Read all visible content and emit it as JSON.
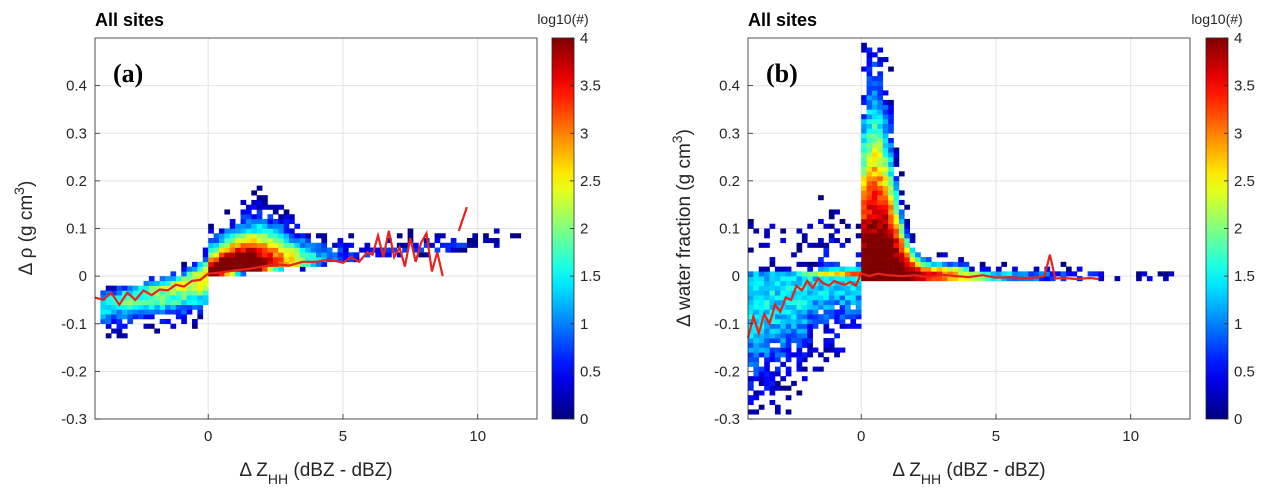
{
  "chart_data": [
    {
      "type": "heatmap",
      "panel_label": "(a)",
      "title": "All sites",
      "xlabel": "Δ Z",
      "xlabel_sub": "HH",
      "xlabel_unit": " (dBZ - dBZ)",
      "ylabel": "Δ ρ (g cm",
      "ylabel_sup": "3",
      "ylabel_end": ")",
      "xlim": [
        -4.2,
        12.2
      ],
      "ylim": [
        -0.3,
        0.5
      ],
      "xticks": [
        "0",
        "5",
        "10"
      ],
      "xtick_values": [
        0,
        5,
        10
      ],
      "yticks": [
        "-0.3",
        "-0.2",
        "-0.1",
        "0",
        "0.1",
        "0.2",
        "0.3",
        "0.4"
      ],
      "ytick_values": [
        -0.3,
        -0.2,
        -0.1,
        0,
        0.1,
        0.2,
        0.3,
        0.4
      ],
      "grid": true,
      "colorbar": {
        "label": "log10(#)",
        "ticks": [
          "0",
          "0.5",
          "1",
          "1.5",
          "2",
          "2.5",
          "3",
          "3.5",
          "4"
        ],
        "range": [
          0,
          4
        ],
        "colormap": "jet"
      },
      "median_line": {
        "color": "#e8231d",
        "x": [
          -4.2,
          -3.9,
          -3.6,
          -3.3,
          -3.0,
          -2.7,
          -2.4,
          -2.1,
          -1.8,
          -1.5,
          -1.2,
          -0.9,
          -0.6,
          -0.3,
          0,
          0.5,
          1,
          1.5,
          2,
          2.5,
          3,
          3.5,
          4,
          4.5,
          5,
          5.3,
          5.6,
          5.9,
          6.1,
          6.3,
          6.5,
          6.7,
          6.9,
          7.1,
          7.3,
          7.5,
          7.7,
          7.9,
          8.1,
          8.3,
          8.5,
          8.7
        ],
        "y": [
          -0.045,
          -0.05,
          -0.035,
          -0.06,
          -0.035,
          -0.05,
          -0.03,
          -0.04,
          -0.028,
          -0.03,
          -0.018,
          -0.022,
          -0.01,
          -0.008,
          0.005,
          0.008,
          0.012,
          0.015,
          0.02,
          0.025,
          0.022,
          0.03,
          0.03,
          0.035,
          0.028,
          0.04,
          0.03,
          0.05,
          0.045,
          0.085,
          0.04,
          0.095,
          0.04,
          0.06,
          0.02,
          0.08,
          0.03,
          0.07,
          0.09,
          0.01,
          0.05,
          0.0
        ],
        "extra_segment": {
          "x": [
            9.3,
            9.6
          ],
          "y": [
            0.095,
            0.145
          ]
        }
      }
    },
    {
      "type": "heatmap",
      "panel_label": "(b)",
      "title": "All sites",
      "xlabel": "Δ Z",
      "xlabel_sub": "HH",
      "xlabel_unit": " (dBZ - dBZ)",
      "ylabel": "Δ water fraction (g cm",
      "ylabel_sup": "3",
      "ylabel_end": ")",
      "xlim": [
        -4.2,
        12.2
      ],
      "ylim": [
        -0.3,
        0.5
      ],
      "xticks": [
        "0",
        "5",
        "10"
      ],
      "xtick_values": [
        0,
        5,
        10
      ],
      "yticks": [
        "-0.3",
        "-0.2",
        "-0.1",
        "0",
        "0.1",
        "0.2",
        "0.3",
        "0.4"
      ],
      "ytick_values": [
        -0.3,
        -0.2,
        -0.1,
        0,
        0.1,
        0.2,
        0.3,
        0.4
      ],
      "grid": true,
      "colorbar": {
        "label": "log10(#)",
        "ticks": [
          "0",
          "0.5",
          "1",
          "1.5",
          "2",
          "2.5",
          "3",
          "3.5",
          "4"
        ],
        "range": [
          0,
          4
        ],
        "colormap": "jet"
      },
      "median_line": {
        "color": "#e8231d",
        "x": [
          -4.2,
          -4.0,
          -3.8,
          -3.6,
          -3.4,
          -3.2,
          -3.0,
          -2.8,
          -2.6,
          -2.4,
          -2.2,
          -2.0,
          -1.8,
          -1.6,
          -1.4,
          -1.2,
          -1.0,
          -0.8,
          -0.6,
          -0.4,
          -0.2,
          0,
          0.3,
          0.6,
          1,
          1.5,
          2,
          2.5,
          3,
          3.5,
          4,
          4.5,
          5,
          5.5,
          6,
          6.5,
          6.8,
          7.0,
          7.2,
          7.5,
          8,
          8.5,
          8.8
        ],
        "y": [
          -0.13,
          -0.085,
          -0.12,
          -0.08,
          -0.1,
          -0.06,
          -0.075,
          -0.045,
          -0.05,
          -0.02,
          -0.03,
          -0.01,
          -0.025,
          -0.005,
          -0.015,
          -0.02,
          -0.01,
          -0.015,
          -0.018,
          -0.012,
          -0.02,
          0.005,
          0.0,
          0.005,
          0.002,
          0.0,
          0.002,
          -0.002,
          0.003,
          0.0,
          -0.002,
          0.002,
          -0.003,
          -0.002,
          -0.004,
          -0.003,
          0.0,
          0.045,
          -0.005,
          -0.004,
          -0.006,
          -0.004,
          -0.006
        ]
      }
    }
  ]
}
